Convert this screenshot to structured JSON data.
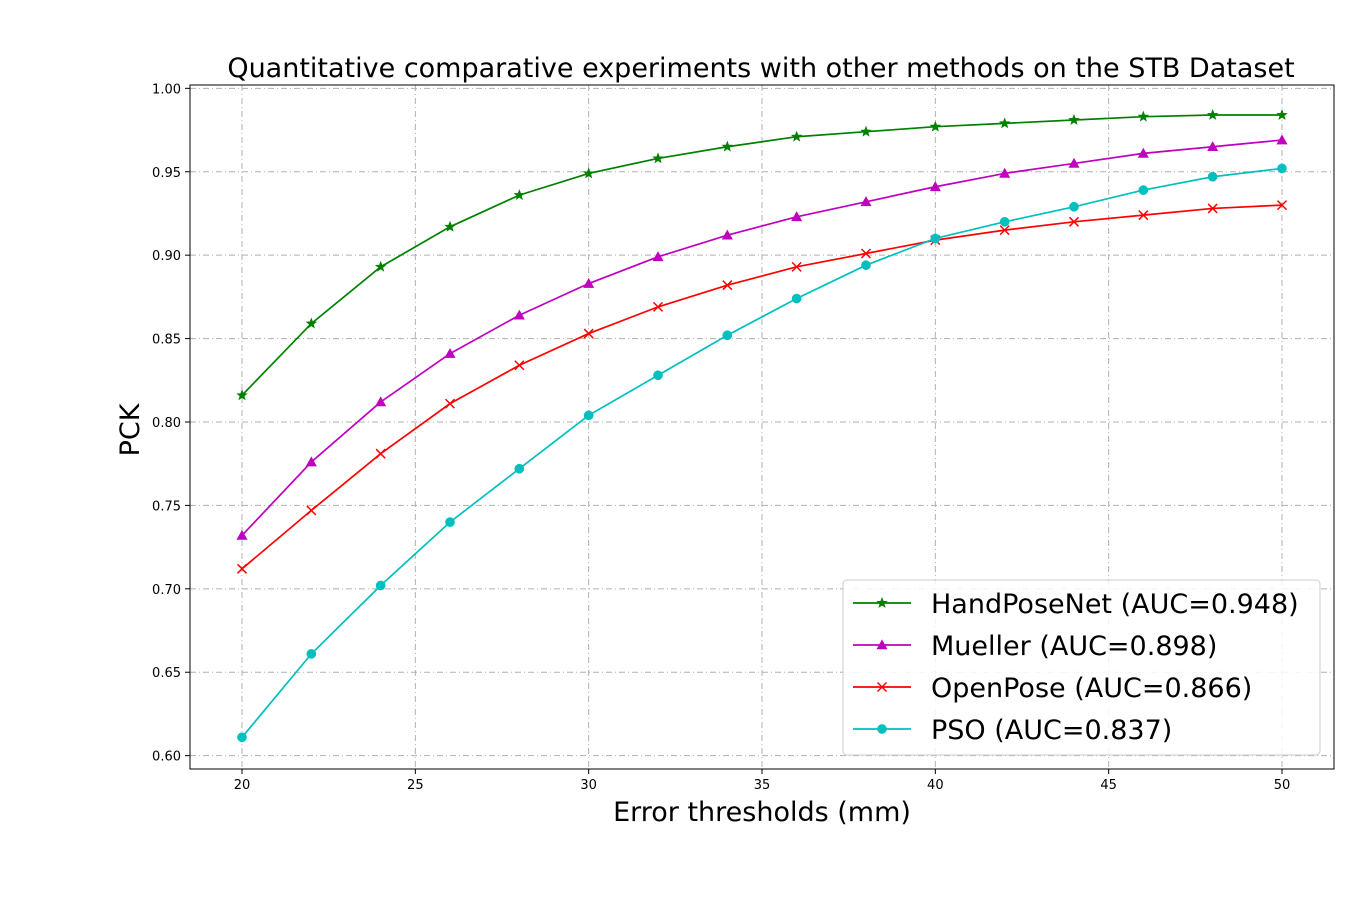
{
  "chart_data": {
    "type": "line",
    "title": "Quantitative comparative experiments with other methods on the STB Dataset",
    "xlabel": "Error thresholds (mm)",
    "ylabel": "PCK",
    "xlim": [
      18.5,
      51.5
    ],
    "ylim": [
      0.592,
      1.002
    ],
    "xticks": [
      20,
      25,
      30,
      35,
      40,
      45,
      50
    ],
    "xtick_labels": [
      "20",
      "25",
      "30",
      "35",
      "40",
      "45",
      "50"
    ],
    "yticks": [
      0.6,
      0.65,
      0.7,
      0.75,
      0.8,
      0.85,
      0.9,
      0.95,
      1.0
    ],
    "ytick_labels": [
      "0.60",
      "0.65",
      "0.70",
      "0.75",
      "0.80",
      "0.85",
      "0.90",
      "0.95",
      "1.00"
    ],
    "grid": true,
    "legend_position": "lower-right",
    "x": [
      20,
      22,
      24,
      26,
      28,
      30,
      32,
      34,
      36,
      38,
      40,
      42,
      44,
      46,
      48,
      50
    ],
    "series": [
      {
        "name": "HandPoseNet (AUC=0.948)",
        "color": "#008000",
        "marker": "star",
        "values": [
          0.816,
          0.859,
          0.893,
          0.917,
          0.936,
          0.949,
          0.958,
          0.965,
          0.971,
          0.974,
          0.977,
          0.979,
          0.981,
          0.983,
          0.984,
          0.984
        ]
      },
      {
        "name": "Mueller (AUC=0.898)",
        "color": "#bf00bf",
        "marker": "triangle",
        "values": [
          0.732,
          0.776,
          0.812,
          0.841,
          0.864,
          0.883,
          0.899,
          0.912,
          0.923,
          0.932,
          0.941,
          0.949,
          0.955,
          0.961,
          0.965,
          0.969
        ]
      },
      {
        "name": "OpenPose (AUC=0.866)",
        "color": "#ff0000",
        "marker": "x",
        "values": [
          0.712,
          0.747,
          0.781,
          0.811,
          0.834,
          0.853,
          0.869,
          0.882,
          0.893,
          0.901,
          0.909,
          0.915,
          0.92,
          0.924,
          0.928,
          0.93
        ]
      },
      {
        "name": "PSO (AUC=0.837)",
        "color": "#00bfbf",
        "marker": "circle",
        "values": [
          0.611,
          0.661,
          0.702,
          0.74,
          0.772,
          0.804,
          0.828,
          0.852,
          0.874,
          0.894,
          0.91,
          0.92,
          0.929,
          0.939,
          0.947,
          0.952
        ]
      }
    ]
  }
}
